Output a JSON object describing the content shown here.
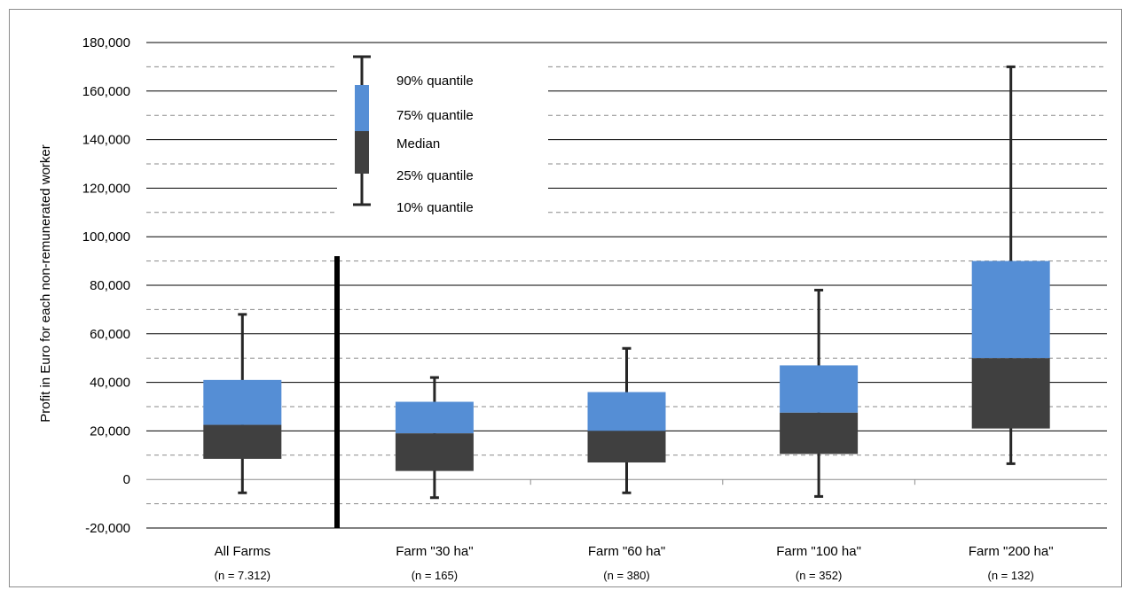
{
  "chart_data": {
    "type": "box",
    "ylabel": "Profit in Euro for each non-remunerated worker",
    "ylim": [
      -20000,
      180000
    ],
    "y_ticks": [
      -20000,
      0,
      20000,
      40000,
      60000,
      80000,
      100000,
      120000,
      140000,
      160000,
      180000
    ],
    "y_tick_labels": [
      "-20,000",
      "0",
      "20,000",
      "40,000",
      "60,000",
      "80,000",
      "100,000",
      "120,000",
      "140,000",
      "160,000",
      "180,000"
    ],
    "grid": "major solid, minor dashed",
    "categories": [
      {
        "label": "All Farms",
        "n_label": "(n = 7.312)"
      },
      {
        "label": "Farm \"30 ha\"",
        "n_label": "(n = 165)"
      },
      {
        "label": "Farm \"60 ha\"",
        "n_label": "(n = 380)"
      },
      {
        "label": "Farm \"100 ha\"",
        "n_label": "(n = 352)"
      },
      {
        "label": "Farm \"200 ha\"",
        "n_label": "(n = 132)"
      }
    ],
    "series": [
      {
        "name": "10% quantile",
        "values": [
          -5500,
          -7500,
          -5500,
          -7000,
          6500
        ]
      },
      {
        "name": "25% quantile",
        "values": [
          8500,
          3500,
          7000,
          10500,
          21000
        ]
      },
      {
        "name": "Median",
        "values": [
          22500,
          19000,
          20000,
          27500,
          50000
        ]
      },
      {
        "name": "75% quantile",
        "values": [
          41000,
          32000,
          36000,
          47000,
          90000
        ]
      },
      {
        "name": "90% quantile",
        "values": [
          68000,
          42000,
          54000,
          78000,
          170000
        ]
      }
    ],
    "separator_top": 92000,
    "colors": {
      "upper_box": "#558ed5",
      "lower_box": "#404040",
      "whisker": "#262626",
      "separator": "#000000"
    },
    "legend": {
      "placement": "top-left",
      "labels": [
        "90% quantile",
        "75% quantile",
        "Median",
        "25% quantile",
        "10% quantile"
      ]
    }
  }
}
